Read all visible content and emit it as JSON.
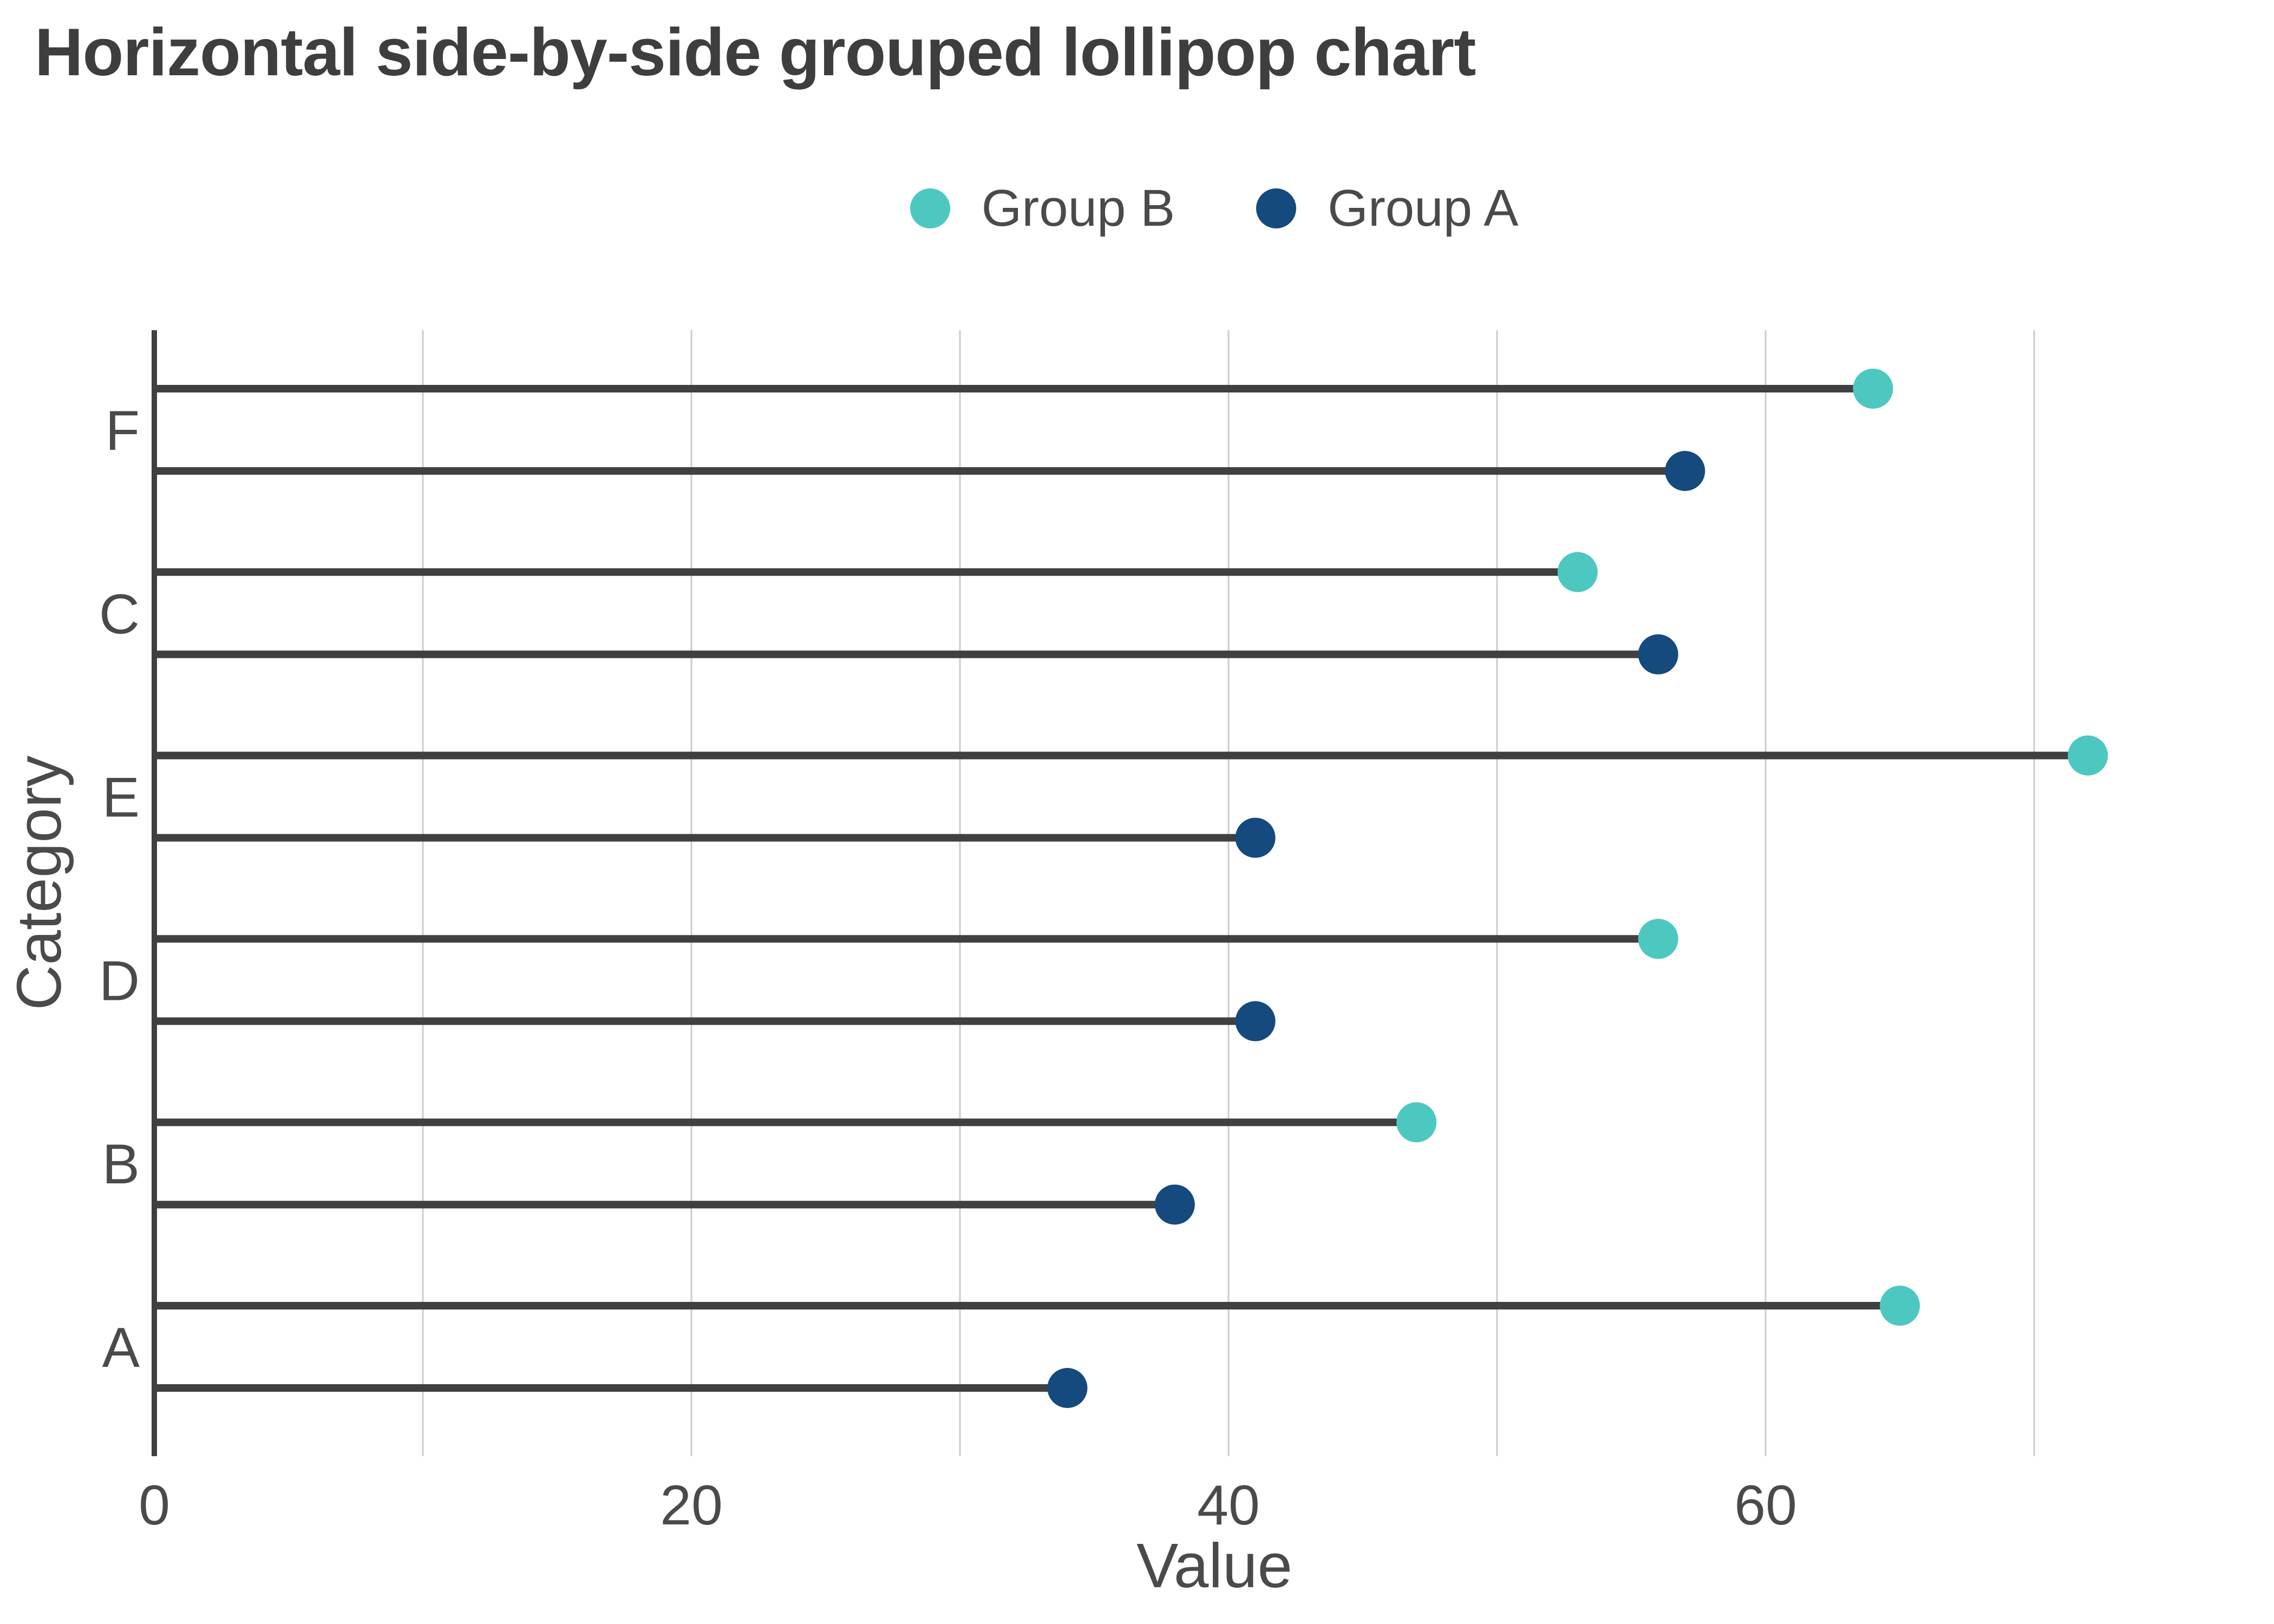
{
  "title": "Horizontal side-by-side grouped lollipop chart",
  "legend": {
    "items": [
      {
        "label": "Group B",
        "color": "#4dc8c1"
      },
      {
        "label": "Group A",
        "color": "#144a7e"
      }
    ]
  },
  "chart_data": {
    "type": "lollipop",
    "orientation": "horizontal",
    "title": "Horizontal side-by-side grouped lollipop chart",
    "categories": [
      "F",
      "C",
      "E",
      "D",
      "B",
      "A"
    ],
    "series": [
      {
        "name": "Group B",
        "color": "#4dc8c1",
        "values": [
          64,
          53,
          72,
          56,
          47,
          65
        ]
      },
      {
        "name": "Group A",
        "color": "#144a7e",
        "values": [
          57,
          56,
          41,
          41,
          38,
          34
        ]
      }
    ],
    "xlabel": "Value",
    "ylabel": "Category",
    "xlim": [
      0,
      79
    ],
    "x_ticks": [
      0,
      10,
      20,
      30,
      40,
      50,
      60,
      70
    ],
    "x_tick_labels": [
      "0",
      "20",
      "40",
      "60"
    ],
    "grid": "vertical-minor-every-10",
    "legend_position": "top-center",
    "colors": {
      "stem": "#404040",
      "axis": "#3f3f3f",
      "grid": "#cbcbcb",
      "label_text": "#4a4a4a"
    }
  }
}
